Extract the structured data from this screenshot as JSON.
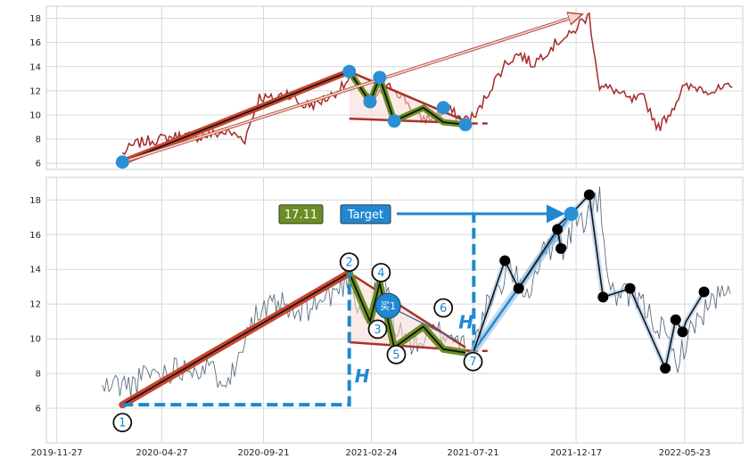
{
  "chart_data": [
    {
      "type": "line",
      "panel": "top",
      "ylim": [
        5.5,
        19
      ],
      "yticks": [
        6,
        8,
        10,
        12,
        14,
        16,
        18
      ],
      "grid": true,
      "price_series": {
        "color": "#a52a2a",
        "x": [
          "2020-03-01",
          "2020-03-20",
          "2020-04-10",
          "2020-05-05",
          "2020-05-25",
          "2020-06-20",
          "2020-07-10",
          "2020-07-31",
          "2020-08-25",
          "2020-09-15",
          "2020-10-05",
          "2020-10-25",
          "2020-11-15",
          "2020-12-05",
          "2020-12-25",
          "2021-01-15",
          "2021-02-01",
          "2021-02-15",
          "2021-03-05",
          "2021-03-25",
          "2021-04-15",
          "2021-05-05",
          "2021-05-25",
          "2021-06-15",
          "2021-07-05",
          "2021-07-25",
          "2021-08-15",
          "2021-09-05",
          "2021-09-25",
          "2021-10-15",
          "2021-11-05",
          "2021-11-25",
          "2021-12-10",
          "2021-12-22",
          "2022-01-05",
          "2022-01-20",
          "2022-02-10",
          "2022-03-05",
          "2022-03-25",
          "2022-04-15",
          "2022-05-05",
          "2022-05-20",
          "2022-06-10",
          "2022-07-05",
          "2022-07-31"
        ],
        "y": [
          6.8,
          7.6,
          7.9,
          8.1,
          8.3,
          8.2,
          8.4,
          8.6,
          8.0,
          11.5,
          11.3,
          11.9,
          10.8,
          10.9,
          11.5,
          12.4,
          13.3,
          11.4,
          11.6,
          12.4,
          11.2,
          9.7,
          9.8,
          10.5,
          9.6,
          9.9,
          12.2,
          14.2,
          15.1,
          14.2,
          15.3,
          16.3,
          16.6,
          17.6,
          18.2,
          12.3,
          12.1,
          11.2,
          11.4,
          8.9,
          10.5,
          12.2,
          12.3,
          12.0,
          12.3
        ]
      },
      "trend_line": {
        "x": [
          "2020-03-01",
          "2021-01-23"
        ],
        "y": [
          6.1,
          13.6
        ]
      },
      "arrow": {
        "x": [
          "2020-03-01",
          "2021-12-24"
        ],
        "y": [
          6.1,
          18.3
        ]
      },
      "triangle_upper": {
        "x": [
          "2021-01-23",
          "2021-07-10"
        ],
        "y": [
          13.6,
          9.5
        ]
      },
      "triangle_lower": {
        "x": [
          "2021-01-23",
          "2021-07-20"
        ],
        "y": [
          9.7,
          9.3
        ]
      },
      "triangle_lower_dashed": {
        "x": [
          "2021-07-20",
          "2021-08-15"
        ],
        "y": [
          9.3,
          9.3
        ]
      },
      "zigzag": {
        "x": [
          "2021-01-23",
          "2021-02-22",
          "2021-03-08",
          "2021-03-29",
          "2021-05-10",
          "2021-06-08",
          "2021-07-10"
        ],
        "y": [
          13.6,
          11.1,
          13.1,
          9.5,
          10.6,
          9.4,
          9.2
        ]
      },
      "pivots": {
        "x": [
          "2020-03-01",
          "2021-01-23",
          "2021-02-22",
          "2021-03-08",
          "2021-03-29",
          "2021-06-08",
          "2021-07-10"
        ],
        "y": [
          6.1,
          13.6,
          11.1,
          13.1,
          9.5,
          10.6,
          9.2
        ]
      }
    },
    {
      "type": "line",
      "panel": "bottom",
      "ylim": [
        4.0,
        19.3
      ],
      "yticks": [
        6,
        8,
        10,
        12,
        14,
        16,
        18
      ],
      "xticks": [
        "2019-11-27",
        "2020-04-27",
        "2020-09-21",
        "2021-02-24",
        "2021-07-21",
        "2021-12-17",
        "2022-05-23"
      ],
      "grid": true,
      "price_series": {
        "color": "#5a6e80",
        "x": [
          "2020-02-01",
          "2020-02-20",
          "2020-03-10",
          "2020-03-25",
          "2020-04-10",
          "2020-04-25",
          "2020-05-15",
          "2020-06-10",
          "2020-07-01",
          "2020-07-20",
          "2020-08-10",
          "2020-08-25",
          "2020-09-10",
          "2020-09-25",
          "2020-10-15",
          "2020-11-05",
          "2020-11-25",
          "2020-12-15",
          "2021-01-05",
          "2021-01-23",
          "2021-02-01",
          "2021-02-15",
          "2021-03-01",
          "2021-03-15",
          "2021-04-01",
          "2021-04-20",
          "2021-05-10",
          "2021-05-30",
          "2021-06-20",
          "2021-07-10",
          "2021-07-22",
          "2021-08-10",
          "2021-08-25",
          "2021-09-10",
          "2021-09-25",
          "2021-10-10",
          "2021-10-25",
          "2021-11-10",
          "2021-11-20",
          "2021-12-01",
          "2021-12-15",
          "2021-12-28",
          "2022-01-10",
          "2022-01-20",
          "2022-02-05",
          "2022-02-25",
          "2022-03-15",
          "2022-04-05",
          "2022-04-25",
          "2022-05-10",
          "2022-05-25",
          "2022-06-10",
          "2022-06-25",
          "2022-07-10",
          "2022-07-28"
        ],
        "y": [
          7.1,
          7.4,
          7.3,
          7.6,
          8.1,
          8.0,
          8.3,
          8.5,
          8.2,
          7.9,
          8.0,
          10.5,
          11.3,
          11.6,
          12.0,
          11.2,
          11.8,
          12.2,
          12.8,
          13.6,
          12.3,
          11.2,
          12.6,
          13.4,
          10.6,
          9.8,
          9.9,
          10.4,
          10.2,
          9.7,
          9.5,
          11.8,
          12.5,
          14.3,
          13.2,
          12.7,
          14.6,
          15.3,
          16.2,
          15.0,
          17.0,
          16.8,
          17.6,
          18.0,
          12.6,
          12.4,
          12.3,
          11.3,
          10.2,
          8.6,
          9.8,
          11.1,
          11.8,
          12.4,
          12.6
        ]
      },
      "trend_line": {
        "x": [
          "2020-03-01",
          "2021-01-23"
        ],
        "y": [
          6.2,
          13.8
        ]
      },
      "breakout_line": {
        "x": [
          "2021-07-22",
          "2021-12-10"
        ],
        "y": [
          9.3,
          17.2
        ]
      },
      "post_pattern_path": {
        "x": [
          "2021-07-22",
          "2021-09-05",
          "2021-09-25",
          "2021-11-20",
          "2021-11-25",
          "2021-11-20",
          "2021-12-10",
          "2022-01-05",
          "2022-01-25",
          "2022-03-05",
          "2022-04-25",
          "2022-05-10",
          "2022-05-20",
          "2022-05-25",
          "2022-06-20"
        ],
        "y": [
          9.3,
          14.5,
          12.9,
          16.3,
          15.2,
          16.5,
          17.2,
          18.3,
          12.4,
          12.9,
          8.3,
          11.1,
          10.4,
          11.0,
          12.7
        ]
      },
      "triangle_upper": {
        "x": [
          "2021-01-23",
          "2021-07-10"
        ],
        "y": [
          13.8,
          9.5
        ]
      },
      "triangle_lower": {
        "x": [
          "2021-01-23",
          "2021-07-20"
        ],
        "y": [
          9.8,
          9.3
        ]
      },
      "triangle_lower_dashed": {
        "x": [
          "2021-07-20",
          "2021-08-15"
        ],
        "y": [
          9.3,
          9.3
        ]
      },
      "zigzag": {
        "x": [
          "2021-01-23",
          "2021-02-22",
          "2021-03-08",
          "2021-03-29",
          "2021-05-10",
          "2021-06-08",
          "2021-07-10"
        ],
        "y": [
          13.8,
          11.0,
          13.2,
          9.5,
          10.7,
          9.4,
          9.2
        ]
      },
      "pattern_points": [
        {
          "label": "1",
          "x": "2020-03-01",
          "y": 6.2
        },
        {
          "label": "2",
          "x": "2021-01-23",
          "y": 13.8
        },
        {
          "label": "3",
          "x": "2021-03-05",
          "y": 10.5
        },
        {
          "label": "4",
          "x": "2021-03-10",
          "y": 13.3
        },
        {
          "label": "5",
          "x": "2021-04-01",
          "y": 9.5
        },
        {
          "label": "6",
          "x": "2021-06-08",
          "y": 10.7
        },
        {
          "label": "7",
          "x": "2021-07-21",
          "y": 9.2
        }
      ],
      "height_measure": {
        "label": "H",
        "base_y": 6.2,
        "top_y": 13.8,
        "x_line": "2021-01-23"
      },
      "projection_measure": {
        "label": "H",
        "base_y": 9.3,
        "top_y": 17.2,
        "x_line": "2021-07-22"
      },
      "buy_marker": {
        "label": "买1",
        "x": "2021-03-20",
        "y": 11.9
      },
      "target_marker": {
        "x": "2021-12-10",
        "y": 17.2
      },
      "price_badge": {
        "text": "17.11",
        "color": "#6b8e23"
      },
      "target_badge": {
        "text": "Target",
        "color": "#1e88d2"
      },
      "black_points": {
        "x": [
          "2021-09-05",
          "2021-09-25",
          "2021-11-20",
          "2021-11-25",
          "2022-01-05",
          "2022-01-25",
          "2022-03-05",
          "2022-04-25",
          "2022-05-10",
          "2022-05-20",
          "2022-06-20"
        ],
        "y": [
          14.5,
          12.9,
          16.3,
          15.2,
          18.3,
          12.4,
          12.9,
          8.3,
          11.1,
          10.4,
          12.7
        ]
      }
    }
  ]
}
